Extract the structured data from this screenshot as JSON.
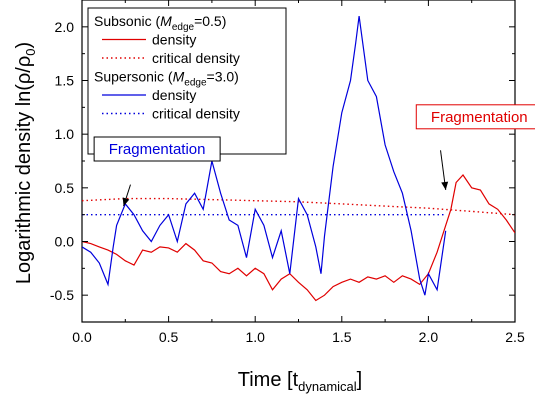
{
  "chart_data": {
    "type": "line",
    "xlabel": {
      "main": "Time [t",
      "sub": "dynamical",
      "close": "]"
    },
    "ylabel": {
      "main": "Logarithmic density ln(ρ/ρ",
      "sub": "0",
      "close": ")"
    },
    "xlim": [
      0.0,
      2.5
    ],
    "ylim": [
      -0.75,
      2.25
    ],
    "xticks": [
      "0.0",
      "0.5",
      "1.0",
      "1.5",
      "2.0",
      "2.5"
    ],
    "xtick_values": [
      0.0,
      0.5,
      1.0,
      1.5,
      2.0,
      2.5
    ],
    "yticks": [
      "-0.5",
      "0.0",
      "0.5",
      "1.0",
      "1.5",
      "2.0"
    ],
    "ytick_values": [
      -0.5,
      0.0,
      0.5,
      1.0,
      1.5,
      2.0
    ],
    "grid": false,
    "legend_position": "top-left",
    "legend": {
      "groups": [
        {
          "title_pre": "Subsonic (",
          "title_var": "M",
          "title_sub": "edge",
          "title_post": "=0.5)",
          "entries": [
            {
              "label": "density",
              "series": 0
            },
            {
              "label": "critical density",
              "series": 1
            }
          ]
        },
        {
          "title_pre": "Supersonic (",
          "title_var": "M",
          "title_sub": "edge",
          "title_post": "=3.0)",
          "entries": [
            {
              "label": "density",
              "series": 2
            },
            {
              "label": "critical density",
              "series": 3
            }
          ]
        }
      ]
    },
    "series": [
      {
        "color": "#e00000",
        "dash": "solid",
        "x": [
          0.0,
          0.05,
          0.1,
          0.15,
          0.2,
          0.25,
          0.3,
          0.35,
          0.4,
          0.45,
          0.5,
          0.55,
          0.6,
          0.65,
          0.7,
          0.75,
          0.8,
          0.85,
          0.9,
          0.95,
          1.0,
          1.05,
          1.1,
          1.15,
          1.2,
          1.25,
          1.3,
          1.35,
          1.4,
          1.45,
          1.5,
          1.55,
          1.6,
          1.65,
          1.7,
          1.75,
          1.8,
          1.85,
          1.9,
          1.95,
          2.0,
          2.05,
          2.1,
          2.13,
          2.16,
          2.2,
          2.25,
          2.3,
          2.35,
          2.4,
          2.45,
          2.5
        ],
        "y": [
          0.0,
          -0.02,
          -0.05,
          -0.08,
          -0.12,
          -0.18,
          -0.22,
          -0.08,
          -0.1,
          -0.05,
          -0.06,
          -0.1,
          -0.02,
          -0.08,
          -0.18,
          -0.2,
          -0.28,
          -0.3,
          -0.25,
          -0.32,
          -0.25,
          -0.3,
          -0.45,
          -0.35,
          -0.3,
          -0.38,
          -0.45,
          -0.55,
          -0.5,
          -0.42,
          -0.38,
          -0.35,
          -0.38,
          -0.33,
          -0.35,
          -0.32,
          -0.38,
          -0.32,
          -0.35,
          -0.4,
          -0.3,
          -0.1,
          0.15,
          0.3,
          0.55,
          0.62,
          0.5,
          0.48,
          0.35,
          0.3,
          0.2,
          0.08
        ]
      },
      {
        "color": "#e00000",
        "dash": "dotted",
        "x": [
          0.0,
          0.25,
          0.5,
          0.75,
          1.0,
          1.25,
          1.5,
          1.75,
          2.0,
          2.25,
          2.5
        ],
        "y": [
          0.38,
          0.4,
          0.4,
          0.39,
          0.38,
          0.37,
          0.35,
          0.33,
          0.31,
          0.28,
          0.25
        ]
      },
      {
        "color": "#0000dd",
        "dash": "solid",
        "x": [
          0.0,
          0.05,
          0.1,
          0.15,
          0.18,
          0.2,
          0.25,
          0.3,
          0.35,
          0.4,
          0.45,
          0.5,
          0.55,
          0.6,
          0.65,
          0.7,
          0.75,
          0.8,
          0.85,
          0.9,
          0.95,
          1.0,
          1.05,
          1.1,
          1.15,
          1.2,
          1.25,
          1.3,
          1.35,
          1.38,
          1.4,
          1.45,
          1.5,
          1.55,
          1.58,
          1.6,
          1.65,
          1.7,
          1.75,
          1.8,
          1.85,
          1.9,
          1.95,
          1.98,
          2.0,
          2.05,
          2.1
        ],
        "y": [
          -0.05,
          -0.1,
          -0.2,
          -0.4,
          -0.05,
          0.15,
          0.35,
          0.25,
          0.1,
          0.0,
          0.15,
          0.25,
          0.0,
          0.35,
          0.45,
          0.3,
          0.75,
          0.45,
          0.2,
          0.15,
          -0.15,
          0.3,
          0.15,
          -0.15,
          0.1,
          -0.3,
          0.4,
          0.25,
          -0.05,
          -0.3,
          0.05,
          0.7,
          1.2,
          1.5,
          1.85,
          2.1,
          1.5,
          1.35,
          0.9,
          0.65,
          0.45,
          0.1,
          -0.35,
          -0.5,
          -0.3,
          -0.45,
          0.1
        ]
      },
      {
        "color": "#0000dd",
        "dash": "dotted",
        "x": [
          0.0,
          0.5,
          1.0,
          1.5,
          2.0,
          2.1
        ],
        "y": [
          0.25,
          0.25,
          0.25,
          0.25,
          0.25,
          0.25
        ]
      }
    ],
    "annotations": [
      {
        "text": "Fragmentation",
        "color": "#0000dd",
        "border": "#000000",
        "box_x": 0.07,
        "box_y": 0.75,
        "arrow_to": [
          0.24,
          0.33
        ],
        "arrow_from": [
          0.28,
          0.53
        ]
      },
      {
        "text": "Fragmentation",
        "color": "#e00000",
        "border": "#e00000",
        "box_x": 1.93,
        "box_y": 1.05,
        "arrow_to": [
          2.1,
          0.48
        ],
        "arrow_from": [
          2.07,
          0.85
        ]
      }
    ]
  }
}
